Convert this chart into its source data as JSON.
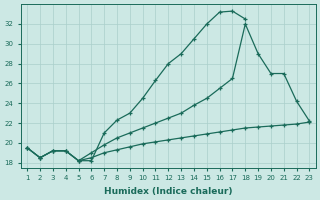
{
  "xlabel": "Humidex (Indice chaleur)",
  "bg_color": "#cce8e4",
  "grid_color": "#aacfcb",
  "line_color": "#1a6b5a",
  "ylim": [
    17.5,
    34.0
  ],
  "xlim": [
    0.5,
    23.5
  ],
  "yticks": [
    18,
    20,
    22,
    24,
    26,
    28,
    30,
    32
  ],
  "xticks": [
    1,
    2,
    3,
    4,
    5,
    6,
    7,
    8,
    9,
    10,
    11,
    12,
    13,
    14,
    15,
    16,
    17,
    18,
    19,
    20,
    21,
    22,
    23
  ],
  "line1_x": [
    1,
    2,
    3,
    4,
    5,
    6,
    7,
    8,
    9,
    10,
    11,
    12,
    13,
    14,
    15,
    16,
    17,
    18
  ],
  "line1_y": [
    19.5,
    18.5,
    19.2,
    19.2,
    18.2,
    18.2,
    21.0,
    22.3,
    23.0,
    24.5,
    26.3,
    28.0,
    29.0,
    30.5,
    32.0,
    33.2,
    33.3,
    32.5
  ],
  "line2_x": [
    1,
    2,
    3,
    4,
    5,
    6,
    7,
    8,
    9,
    10,
    11,
    12,
    13,
    14,
    15,
    16,
    17,
    18,
    19,
    20,
    21,
    22,
    23
  ],
  "line2_y": [
    19.5,
    18.5,
    19.2,
    19.2,
    18.2,
    19.0,
    19.8,
    20.5,
    21.0,
    21.5,
    22.0,
    22.5,
    23.0,
    23.8,
    24.5,
    25.5,
    26.5,
    32.0,
    29.0,
    27.0,
    27.0,
    24.2,
    22.2
  ],
  "line3_x": [
    1,
    2,
    3,
    4,
    5,
    6,
    7,
    8,
    9,
    10,
    11,
    12,
    13,
    14,
    15,
    16,
    17,
    18,
    19,
    20,
    21,
    22,
    23
  ],
  "line3_y": [
    19.5,
    18.5,
    19.2,
    19.2,
    18.2,
    18.5,
    19.0,
    19.3,
    19.6,
    19.9,
    20.1,
    20.3,
    20.5,
    20.7,
    20.9,
    21.1,
    21.3,
    21.5,
    21.6,
    21.7,
    21.8,
    21.9,
    22.1
  ]
}
